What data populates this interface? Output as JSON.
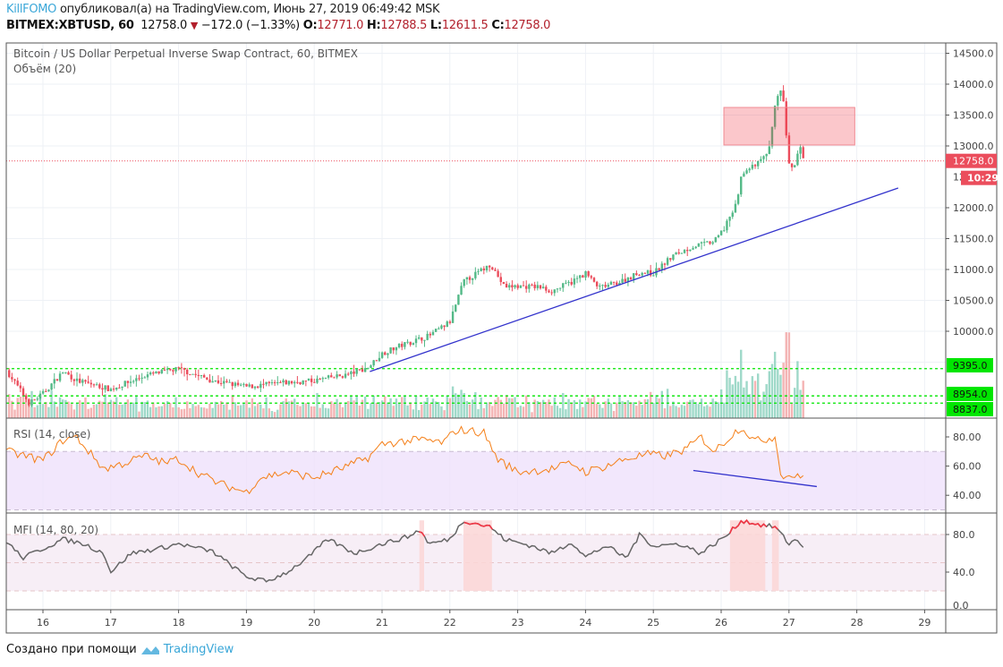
{
  "header": {
    "user": "KillFOMO",
    "published_text": "опубликовал(а) на TradingView.com, Июнь 27, 2019 06:49:42 MSK",
    "symbol": "BITMEX:XBTUSD, 60",
    "last": "12758.0",
    "change": "−172.0 (−1.33%)",
    "o_label": "O:",
    "o": "12771.0",
    "h_label": "H:",
    "h": "12788.5",
    "l_label": "L:",
    "l": "12611.5",
    "c_label": "C:",
    "c": "12758.0"
  },
  "main_pane": {
    "title": "Bitcoin / US Dollar Perpetual Inverse Swap Contract, 60, BITMEX",
    "volume_label": "Объём (20)",
    "price_ticks": [
      "14500.0",
      "14000.0",
      "13500.0",
      "13000.0",
      "12000.0",
      "11500.0",
      "11000.0",
      "10500.0",
      "10000.0"
    ],
    "price_tick_values": [
      14500,
      14000,
      13500,
      13000,
      12000,
      11500,
      11000,
      10500,
      10000
    ],
    "current_price_label": "12758.0",
    "countdown_label": "10:29",
    "levels": [
      {
        "label": "9395.0",
        "value": 9395
      },
      {
        "label": "8954.0",
        "value": 8954
      },
      {
        "label": "8837.0",
        "value": 8837
      }
    ]
  },
  "rsi_pane": {
    "title": "RSI (14, close)",
    "ticks": [
      "80.00",
      "60.00",
      "40.00"
    ],
    "tick_values": [
      80,
      60,
      40
    ]
  },
  "mfi_pane": {
    "title": "MFI (14, 80, 20)",
    "ticks": [
      "80.0",
      "40.0",
      "0.0"
    ],
    "tick_values": [
      80,
      40,
      0
    ]
  },
  "time_axis": {
    "ticks": [
      "16",
      "17",
      "18",
      "19",
      "20",
      "21",
      "22",
      "23",
      "24",
      "25",
      "26",
      "27",
      "28",
      "29"
    ],
    "tick_values": [
      16,
      17,
      18,
      19,
      20,
      21,
      22,
      23,
      24,
      25,
      26,
      27,
      28,
      29
    ]
  },
  "footer": {
    "text": "Создано при помощи",
    "brand": "TradingView"
  },
  "colors": {
    "up": "#53b987",
    "down": "#eb4d5c",
    "rsi": "#f57f17",
    "mfi": "#666666",
    "level": "#00e600",
    "trend": "#3333cc"
  },
  "chart_data": {
    "type": "candlestick",
    "x_unit": "day of June 2019",
    "price_path": [
      [
        15.46,
        9370
      ],
      [
        15.8,
        8830
      ],
      [
        16.0,
        8990
      ],
      [
        16.3,
        9350
      ],
      [
        16.5,
        9200
      ],
      [
        17.0,
        9060
      ],
      [
        17.5,
        9280
      ],
      [
        18.0,
        9390
      ],
      [
        18.5,
        9200
      ],
      [
        19.0,
        9100
      ],
      [
        19.5,
        9160
      ],
      [
        20.0,
        9200
      ],
      [
        20.5,
        9300
      ],
      [
        20.8,
        9420
      ],
      [
        21.0,
        9640
      ],
      [
        21.3,
        9780
      ],
      [
        21.7,
        9930
      ],
      [
        22.0,
        10150
      ],
      [
        22.2,
        10800
      ],
      [
        22.5,
        11010
      ],
      [
        22.6,
        11090
      ],
      [
        22.8,
        10720
      ],
      [
        23.0,
        10730
      ],
      [
        23.3,
        10720
      ],
      [
        23.5,
        10650
      ],
      [
        23.8,
        10800
      ],
      [
        24.0,
        10940
      ],
      [
        24.2,
        10700
      ],
      [
        24.5,
        10800
      ],
      [
        24.8,
        10950
      ],
      [
        25.0,
        10940
      ],
      [
        25.3,
        11230
      ],
      [
        25.6,
        11380
      ],
      [
        25.9,
        11450
      ],
      [
        26.0,
        11600
      ],
      [
        26.2,
        11960
      ],
      [
        26.3,
        12540
      ],
      [
        26.5,
        12680
      ],
      [
        26.7,
        12900
      ],
      [
        26.8,
        13700
      ],
      [
        26.9,
        13910
      ],
      [
        27.0,
        12700
      ],
      [
        27.1,
        12650
      ],
      [
        27.15,
        13120
      ],
      [
        27.2,
        12800
      ],
      [
        27.25,
        12758
      ]
    ],
    "rsi": [
      [
        15.46,
        70
      ],
      [
        16.0,
        64
      ],
      [
        16.3,
        78
      ],
      [
        16.5,
        80
      ],
      [
        16.6,
        74
      ],
      [
        16.9,
        58
      ],
      [
        17.2,
        62
      ],
      [
        17.5,
        67
      ],
      [
        17.8,
        62
      ],
      [
        18.0,
        65
      ],
      [
        18.3,
        55
      ],
      [
        18.6,
        48
      ],
      [
        19.0,
        42
      ],
      [
        19.2,
        52
      ],
      [
        19.6,
        56
      ],
      [
        20.0,
        52
      ],
      [
        20.5,
        60
      ],
      [
        20.8,
        66
      ],
      [
        21.0,
        75
      ],
      [
        21.3,
        77
      ],
      [
        21.6,
        78
      ],
      [
        21.9,
        76
      ],
      [
        22.1,
        85
      ],
      [
        22.5,
        83
      ],
      [
        22.7,
        65
      ],
      [
        23.0,
        56
      ],
      [
        23.5,
        58
      ],
      [
        23.8,
        62
      ],
      [
        24.0,
        56
      ],
      [
        24.3,
        60
      ],
      [
        24.6,
        65
      ],
      [
        24.9,
        68
      ],
      [
        25.2,
        67
      ],
      [
        25.5,
        72
      ],
      [
        25.7,
        80
      ],
      [
        25.9,
        70
      ],
      [
        26.1,
        79
      ],
      [
        26.3,
        87
      ],
      [
        26.5,
        77
      ],
      [
        26.8,
        80
      ],
      [
        26.9,
        50
      ],
      [
        27.0,
        55
      ],
      [
        27.1,
        52
      ],
      [
        27.25,
        53
      ]
    ],
    "mfi": [
      [
        15.46,
        73
      ],
      [
        15.7,
        55
      ],
      [
        16.0,
        65
      ],
      [
        16.3,
        75
      ],
      [
        16.6,
        70
      ],
      [
        16.9,
        60
      ],
      [
        17.0,
        40
      ],
      [
        17.3,
        60
      ],
      [
        17.7,
        65
      ],
      [
        18.0,
        70
      ],
      [
        18.5,
        62
      ],
      [
        19.0,
        35
      ],
      [
        19.3,
        30
      ],
      [
        19.6,
        40
      ],
      [
        19.9,
        55
      ],
      [
        20.2,
        75
      ],
      [
        20.6,
        60
      ],
      [
        21.0,
        70
      ],
      [
        21.4,
        78
      ],
      [
        21.55,
        85
      ],
      [
        21.7,
        70
      ],
      [
        22.0,
        75
      ],
      [
        22.2,
        95
      ],
      [
        22.6,
        88
      ],
      [
        22.8,
        75
      ],
      [
        23.2,
        68
      ],
      [
        23.5,
        60
      ],
      [
        23.8,
        72
      ],
      [
        24.0,
        56
      ],
      [
        24.3,
        68
      ],
      [
        24.6,
        55
      ],
      [
        24.8,
        80
      ],
      [
        25.0,
        68
      ],
      [
        25.4,
        70
      ],
      [
        25.7,
        60
      ],
      [
        26.1,
        80
      ],
      [
        26.3,
        95
      ],
      [
        26.6,
        90
      ],
      [
        26.8,
        88
      ],
      [
        27.0,
        70
      ],
      [
        27.1,
        75
      ],
      [
        27.25,
        65
      ]
    ],
    "mfi_overbought_zones": [
      [
        21.55,
        21.62
      ],
      [
        22.2,
        22.62
      ],
      [
        26.13,
        26.65
      ],
      [
        26.75,
        26.85
      ]
    ],
    "rsi_bands": [
      70,
      30
    ],
    "mfi_bands": [
      80,
      50,
      20
    ],
    "current_price": 12758,
    "drawings": {
      "resistance_box": {
        "from_day": 26.04,
        "to_day": 27.97,
        "low": 13015,
        "high": 13623
      },
      "price_trendline": [
        [
          20.82,
          9348
        ],
        [
          28.61,
          12319
        ]
      ],
      "rsi_trendline": [
        [
          25.59,
          57
        ],
        [
          27.41,
          46
        ]
      ]
    }
  }
}
